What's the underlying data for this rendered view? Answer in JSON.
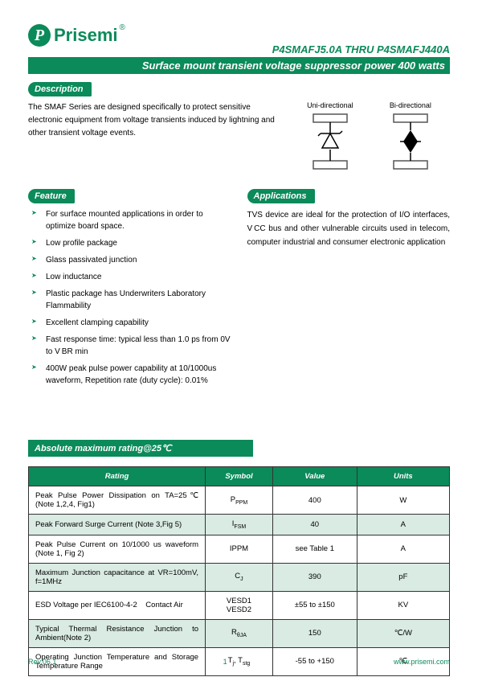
{
  "brand": {
    "logo_letter": "P",
    "name": "Prisemi",
    "reg": "®",
    "brand_color": "#0b8a5a"
  },
  "header": {
    "part_range": "P4SMAFJ5.0A THRU P4SMAFJ440A",
    "subtitle": "Surface mount transient voltage suppressor power 400 watts"
  },
  "description": {
    "label": "Description",
    "text": "The SMAF Series are designed specifically to protect sensitive electronic equipment from voltage transients induced by lightning and other transient voltage events."
  },
  "diagrams": {
    "uni_label": "Uni-directional",
    "bi_label": "Bi-directional"
  },
  "feature": {
    "label": "Feature",
    "items": [
      "For surface mounted applications in order to optimize board space.",
      "Low profile package",
      "Glass passivated junction",
      "Low inductance",
      "Plastic package has Underwriters Laboratory Flammability",
      "Excellent clamping capability",
      "Fast response time: typical less than 1.0 ps from 0V to V BR min",
      "400W peak pulse power capability at 10/1000us waveform, Repetition rate (duty cycle): 0.01%"
    ]
  },
  "applications": {
    "label": "Applications",
    "text": "TVS device are ideal for the protection of I/O interfaces, V CC bus and other vulnerable circuits used in telecom, computer industrial and consumer electronic application"
  },
  "ratings": {
    "title": "Absolute maximum rating@25℃",
    "columns": [
      "Rating",
      "Symbol",
      "Value",
      "Units"
    ],
    "col_widths": [
      "42%",
      "16%",
      "20%",
      "22%"
    ],
    "rows": [
      {
        "alt": false,
        "rating": "Peak Pulse Power Dissipation on TA=25℃ (Note 1,2,4, Fig1)",
        "symbol": "P<span class='sub'>PPM</span>",
        "value": "400",
        "units": "W"
      },
      {
        "alt": true,
        "rating": "Peak Forward Surge Current (Note 3,Fig 5)",
        "symbol": "I<span class='sub'>FSM</span>",
        "value": "40",
        "units": "A"
      },
      {
        "alt": false,
        "rating": "Peak Pulse Current on 10/1000 us waveform (Note 1, Fig 2)",
        "symbol": "IPPM",
        "value": "see Table 1",
        "units": "A"
      },
      {
        "alt": true,
        "rating": "Maximum Junction capacitance at VR=100mV, f=1MHz",
        "symbol": "C<span class='sub'>J</span>",
        "value": "390",
        "units": "pF"
      },
      {
        "alt": false,
        "rating": "ESD Voltage per IEC6100-4-2 &nbsp;&nbsp; Contact Air",
        "symbol": "VESD1<br>VESD2",
        "value": "±55 to ±150",
        "units": "KV"
      },
      {
        "alt": true,
        "rating": "Typical Thermal Resistance Junction to Ambient(Note 2)",
        "symbol": "R<span class='sub'>θJA</span>",
        "value": "150",
        "units": "℃/W"
      },
      {
        "alt": false,
        "rating": "Operating Junction Temperature and Storage Temperature Range",
        "symbol": "T<span class='sub'>j</span>, T<span class='sub'>stg</span>",
        "value": "-55 to +150",
        "units": "℃"
      }
    ]
  },
  "footer": {
    "rev": "Rev.06.1",
    "page": "1",
    "url": "www.prisemi.com"
  }
}
